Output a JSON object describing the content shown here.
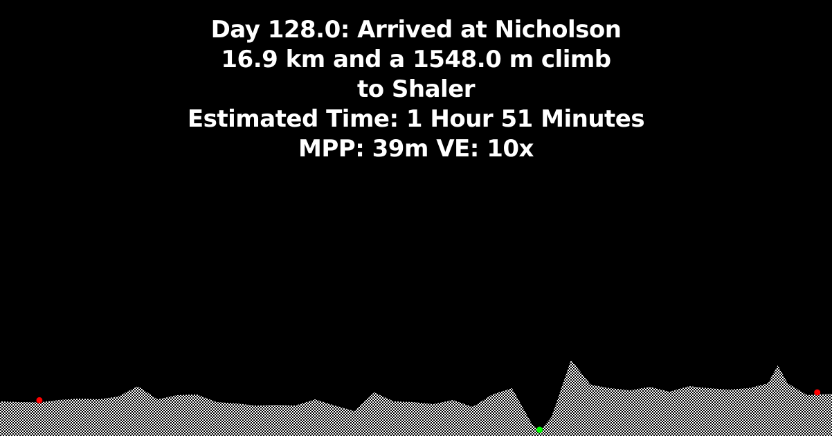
{
  "title_lines": [
    "Day 128.0: Arrived at Nicholson",
    "16.9 km and a 1548.0 m climb",
    "to Shaler",
    "Estimated Time: 1 Hour 51 Minutes",
    "MPP: 39m VE: 10x"
  ],
  "colors": {
    "background": "#000000",
    "text": "#ffffff",
    "terrain_fill": "#ffffff",
    "terrain_hatch": "#000000",
    "start_marker": "#ff0000",
    "end_marker": "#ff0000",
    "current_marker": "#00ff00"
  },
  "chart_data": {
    "type": "area",
    "title": "Day 128.0: Arrived at Nicholson",
    "xlabel": "",
    "ylabel": "",
    "x_unit": "km",
    "y_unit": "m",
    "x": [
      0,
      0.4,
      0.8,
      1.2,
      1.6,
      2.0,
      2.4,
      2.8,
      3.2,
      3.6,
      4.0,
      4.4,
      4.8,
      5.2,
      5.6,
      6.0,
      6.4,
      6.8,
      7.2,
      7.6,
      8.0,
      8.4,
      8.8,
      9.2,
      9.6,
      10.0,
      10.4,
      10.8,
      10.96,
      11.2,
      11.6,
      12.0,
      12.4,
      12.8,
      13.2,
      13.6,
      14.0,
      14.4,
      14.8,
      15.2,
      15.6,
      15.8,
      16.0,
      16.4,
      16.9
    ],
    "y": [
      1290,
      1285,
      1283,
      1300,
      1310,
      1305,
      1325,
      1400,
      1305,
      1335,
      1340,
      1285,
      1275,
      1260,
      1265,
      1260,
      1305,
      1260,
      1220,
      1355,
      1290,
      1285,
      1270,
      1300,
      1250,
      1340,
      1385,
      1130,
      1075,
      1175,
      1590,
      1410,
      1385,
      1370,
      1395,
      1360,
      1400,
      1385,
      1375,
      1385,
      1420,
      1550,
      1420,
      1335,
      1345
    ],
    "markers": [
      {
        "role": "start",
        "x": 0.8,
        "y": 1288
      },
      {
        "role": "current",
        "x": 10.96,
        "y": 1075
      },
      {
        "role": "end",
        "x": 16.6,
        "y": 1345
      }
    ]
  }
}
